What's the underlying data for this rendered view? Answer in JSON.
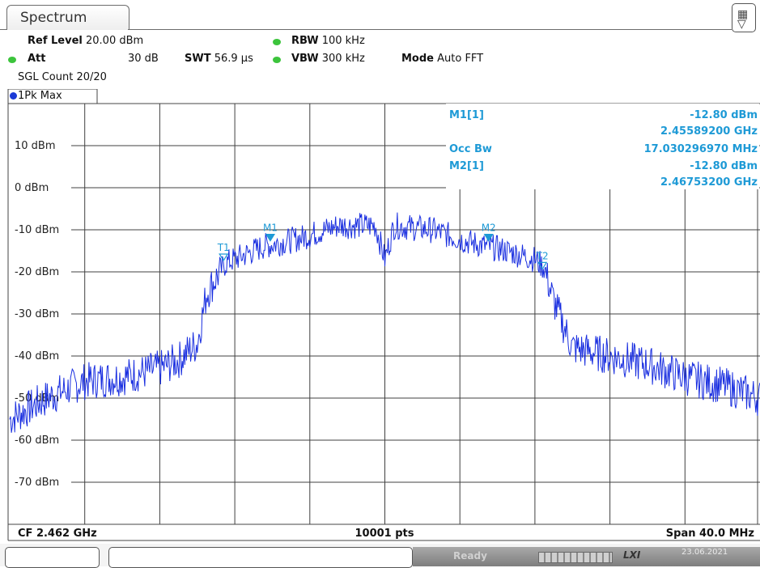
{
  "tab": {
    "label": "Spectrum"
  },
  "settings": {
    "ref_level_label": "Ref Level",
    "ref_level_value": "20.00 dBm",
    "att_label": "Att",
    "att_value": "30 dB",
    "swt_label": "SWT",
    "swt_value": "56.9 µs",
    "rbw_label": "RBW",
    "rbw_value": "100 kHz",
    "vbw_label": "VBW",
    "vbw_value": "300 kHz",
    "mode_label": "Mode",
    "mode_value": "Auto FFT",
    "sgl_count": "SGL Count 20/20"
  },
  "trace": {
    "label": "1Pk Max"
  },
  "markers_table": [
    {
      "name": "M1[1]",
      "value": "-12.80 dBm"
    },
    {
      "name": "",
      "value": "2.45589200 GHz"
    },
    {
      "name": "Occ Bw",
      "value": "17.030296970 MHz"
    },
    {
      "name": "M2[1]",
      "value": "-12.80 dBm"
    },
    {
      "name": "",
      "value": "2.46753200 GHz"
    }
  ],
  "marker_tags": [
    "M1",
    "M2",
    "T1",
    "T2"
  ],
  "footer": {
    "left": "CF 2.462 GHz",
    "center": "10001 pts",
    "right": "Span 40.0 MHz"
  },
  "status": {
    "ready": "Ready",
    "lxi": "LXI",
    "date": "23.06.2021"
  },
  "colors": {
    "trace": "#1a2fe0",
    "marker": "#1e9ad6",
    "grid": "#404040",
    "indicator": "#3cc43c"
  },
  "chart_data": {
    "type": "line",
    "title": "",
    "xlabel": "",
    "ylabel": "",
    "y_tick_labels": [
      "10 dBm",
      "0 dBm",
      "-10 dBm",
      "-20 dBm",
      "-30 dBm",
      "-40 dBm",
      "-50 dBm",
      "-60 dBm",
      "-70 dBm"
    ],
    "ylim": [
      -80,
      20
    ],
    "xlim_ghz": [
      2.442,
      2.482
    ],
    "grid": true,
    "series": [
      {
        "name": "1Pk Max",
        "x": [
          2.442,
          2.444,
          2.446,
          2.448,
          2.45,
          2.451,
          2.452,
          2.4525,
          2.4535,
          2.4545,
          2.4555,
          2.4575,
          2.4595,
          2.4615,
          2.462,
          2.4625,
          2.4645,
          2.4665,
          2.4685,
          2.47,
          2.4705,
          2.471,
          2.472,
          2.474,
          2.476,
          2.478,
          2.48,
          2.482
        ],
        "y": [
          -55,
          -50,
          -46,
          -45,
          -43,
          -41,
          -37,
          -25,
          -18,
          -16,
          -14,
          -12,
          -9,
          -9,
          -17,
          -9,
          -10,
          -13,
          -15,
          -17,
          -19,
          -27,
          -38,
          -40,
          -42,
          -45,
          -47,
          -50
        ]
      }
    ],
    "markers": [
      {
        "name": "M1",
        "x": 2.455892,
        "y": -12.8
      },
      {
        "name": "M2",
        "x": 2.467532,
        "y": -12.8
      },
      {
        "name": "T1",
        "x": 2.4534,
        "y": -17.5
      },
      {
        "name": "T2",
        "x": 2.4704,
        "y": -19.5
      }
    ]
  }
}
